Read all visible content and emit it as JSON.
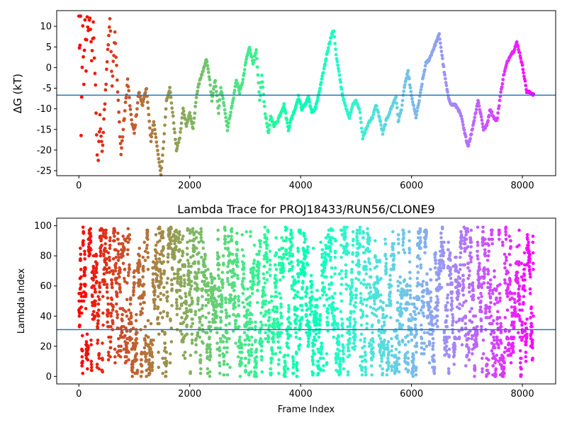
{
  "chart_data": [
    {
      "type": "scatter",
      "title": "",
      "xlabel": "",
      "ylabel": "ΔG (kT)",
      "xlim": [
        -400,
        8600
      ],
      "ylim": [
        -26.2,
        13.8
      ],
      "xticks": [
        0,
        2000,
        4000,
        6000,
        8000
      ],
      "xtick_labels": [
        "0",
        "2000",
        "4000",
        "6000",
        "8000"
      ],
      "yticks": [
        10,
        5,
        0,
        -5,
        -10,
        -15,
        -20,
        -25
      ],
      "ytick_labels": [
        "10",
        "5",
        "0",
        "-5",
        "-10",
        "-15",
        "-20",
        "-25"
      ],
      "grid": false,
      "colormap": "rainbow (red at frame 0 → violet at last frame)",
      "hline": {
        "y": -6.7,
        "color": "#1f77b4"
      },
      "point_color_from_frame_range": [
        0,
        8200
      ],
      "trace_keypoints": [
        [
          0,
          12
        ],
        [
          15,
          2
        ],
        [
          30,
          11
        ],
        [
          40,
          -17
        ],
        [
          55,
          -3
        ],
        [
          70,
          9
        ],
        [
          90,
          -5
        ],
        [
          110,
          12
        ],
        [
          130,
          0
        ],
        [
          150,
          13
        ],
        [
          175,
          7
        ],
        [
          200,
          13
        ],
        [
          230,
          2
        ],
        [
          260,
          10
        ],
        [
          300,
          -5
        ],
        [
          340,
          -26
        ],
        [
          380,
          -12
        ],
        [
          420,
          -21
        ],
        [
          470,
          -8
        ],
        [
          520,
          4
        ],
        [
          560,
          12
        ],
        [
          600,
          -4
        ],
        [
          650,
          9
        ],
        [
          700,
          -6
        ],
        [
          760,
          -21
        ],
        [
          820,
          -12
        ],
        [
          880,
          -3
        ],
        [
          940,
          -12
        ],
        [
          1000,
          -16
        ],
        [
          1080,
          -6
        ],
        [
          1150,
          -9
        ],
        [
          1220,
          -5
        ],
        [
          1300,
          -18
        ],
        [
          1350,
          -13
        ],
        [
          1420,
          -20
        ],
        [
          1480,
          -26
        ],
        [
          1530,
          -18
        ],
        [
          1580,
          -8
        ],
        [
          1640,
          -5
        ],
        [
          1700,
          -12
        ],
        [
          1760,
          -20
        ],
        [
          1820,
          -17
        ],
        [
          1880,
          -10
        ],
        [
          1940,
          -14
        ],
        [
          2000,
          -11
        ],
        [
          2060,
          -15
        ],
        [
          2120,
          -7
        ],
        [
          2180,
          -3
        ],
        [
          2240,
          -1
        ],
        [
          2300,
          2
        ],
        [
          2350,
          -2
        ],
        [
          2400,
          -8
        ],
        [
          2460,
          -3
        ],
        [
          2520,
          -11
        ],
        [
          2560,
          -5
        ],
        [
          2620,
          -9
        ],
        [
          2680,
          -15
        ],
        [
          2720,
          -12
        ],
        [
          2780,
          -8
        ],
        [
          2840,
          -3
        ],
        [
          2900,
          -6
        ],
        [
          2960,
          -3
        ],
        [
          3020,
          2
        ],
        [
          3080,
          5
        ],
        [
          3140,
          1
        ],
        [
          3200,
          4
        ],
        [
          3260,
          -8
        ],
        [
          3300,
          -2
        ],
        [
          3360,
          -11
        ],
        [
          3420,
          -16
        ],
        [
          3460,
          -12
        ],
        [
          3520,
          -14
        ],
        [
          3580,
          -13
        ],
        [
          3640,
          -11
        ],
        [
          3700,
          -9
        ],
        [
          3780,
          -15
        ],
        [
          3840,
          -12
        ],
        [
          3900,
          -10
        ],
        [
          3960,
          -7
        ],
        [
          4020,
          -10
        ],
        [
          4080,
          -9
        ],
        [
          4140,
          -7
        ],
        [
          4200,
          -11
        ],
        [
          4260,
          -10
        ],
        [
          4320,
          -7
        ],
        [
          4380,
          -3
        ],
        [
          4440,
          1
        ],
        [
          4500,
          5
        ],
        [
          4560,
          8
        ],
        [
          4600,
          9
        ],
        [
          4640,
          3
        ],
        [
          4700,
          -2
        ],
        [
          4760,
          -7
        ],
        [
          4820,
          -10
        ],
        [
          4880,
          -12
        ],
        [
          4940,
          -9
        ],
        [
          5000,
          -8
        ],
        [
          5060,
          -10
        ],
        [
          5120,
          -17
        ],
        [
          5180,
          -15
        ],
        [
          5240,
          -13
        ],
        [
          5300,
          -12
        ],
        [
          5360,
          -9
        ],
        [
          5420,
          -12
        ],
        [
          5480,
          -16
        ],
        [
          5540,
          -13
        ],
        [
          5600,
          -11
        ],
        [
          5660,
          -9
        ],
        [
          5720,
          -7
        ],
        [
          5760,
          -13
        ],
        [
          5820,
          -10
        ],
        [
          5880,
          -4
        ],
        [
          5940,
          -1
        ],
        [
          6000,
          -7
        ],
        [
          6080,
          -12
        ],
        [
          6140,
          -8
        ],
        [
          6200,
          -3
        ],
        [
          6260,
          1
        ],
        [
          6320,
          2
        ],
        [
          6380,
          4
        ],
        [
          6440,
          6
        ],
        [
          6500,
          8
        ],
        [
          6540,
          4
        ],
        [
          6600,
          -2
        ],
        [
          6660,
          -7
        ],
        [
          6720,
          -9
        ],
        [
          6780,
          -9
        ],
        [
          6840,
          -10
        ],
        [
          6900,
          -12
        ],
        [
          6960,
          -16
        ],
        [
          7020,
          -19
        ],
        [
          7080,
          -16
        ],
        [
          7140,
          -12
        ],
        [
          7200,
          -8
        ],
        [
          7260,
          -12
        ],
        [
          7300,
          -15
        ],
        [
          7360,
          -14
        ],
        [
          7420,
          -10
        ],
        [
          7480,
          -12
        ],
        [
          7540,
          -13
        ],
        [
          7600,
          -7
        ],
        [
          7660,
          -2
        ],
        [
          7720,
          1
        ],
        [
          7780,
          3
        ],
        [
          7840,
          4
        ],
        [
          7900,
          6
        ],
        [
          7960,
          3
        ],
        [
          8020,
          -1
        ],
        [
          8080,
          -6
        ],
        [
          8140,
          -6
        ],
        [
          8200,
          -6.5
        ]
      ]
    },
    {
      "type": "scatter",
      "title": "Lambda Trace for PROJ18433/RUN56/CLONE9",
      "xlabel": "Frame Index",
      "ylabel": "Lambda Index",
      "xlim": [
        -400,
        8600
      ],
      "ylim": [
        -5,
        105
      ],
      "xticks": [
        0,
        2000,
        4000,
        6000,
        8000
      ],
      "xtick_labels": [
        "0",
        "2000",
        "4000",
        "6000",
        "8000"
      ],
      "yticks": [
        0,
        20,
        40,
        60,
        80,
        100
      ],
      "ytick_labels": [
        "0",
        "20",
        "40",
        "60",
        "80",
        "100"
      ],
      "grid": false,
      "colormap": "rainbow (red at frame 0 → violet at last frame)",
      "hline": {
        "y": 31,
        "color": "#1f77b4"
      },
      "point_count": 8200,
      "point_color_from_frame_range": [
        0,
        8200
      ],
      "lambda_range": [
        0,
        99
      ]
    }
  ]
}
